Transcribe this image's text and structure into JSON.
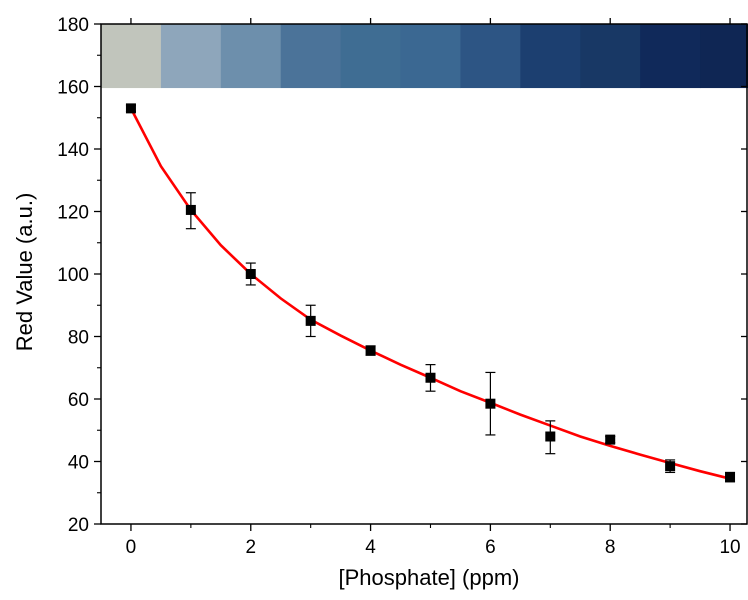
{
  "chart_data": {
    "type": "scatter",
    "xlabel": "[Phosphate] (ppm)",
    "ylabel": "Red Value (a.u.)",
    "xlim": [
      -0.5,
      10.3
    ],
    "ylim": [
      20,
      180
    ],
    "xticks": [
      0,
      2,
      4,
      6,
      8,
      10
    ],
    "yticks": [
      20,
      40,
      60,
      80,
      100,
      120,
      140,
      160,
      180
    ],
    "grid": false,
    "series": [
      {
        "kind": "points-with-error-bars",
        "color": "#000000",
        "marker": "square",
        "x": [
          0,
          1,
          2,
          3,
          4,
          5,
          6,
          7,
          8,
          9,
          10
        ],
        "y": [
          153,
          120.5,
          100,
          85,
          75.5,
          66.8,
          58.5,
          48,
          47,
          38.5,
          35
        ],
        "err_low": [
          152,
          114.5,
          96.5,
          80,
          74,
          62.5,
          48.5,
          42.5,
          46,
          36.5,
          33.5
        ],
        "err_high": [
          154,
          126,
          103.5,
          90,
          77,
          71,
          68.5,
          53,
          48,
          40.5,
          36.5
        ]
      },
      {
        "kind": "fit-curve",
        "color": "#ff0000",
        "x": [
          0,
          0.5,
          1,
          1.5,
          2,
          2.5,
          3,
          3.5,
          4,
          4.5,
          5,
          5.5,
          6,
          6.5,
          7,
          7.5,
          8,
          8.5,
          9,
          9.5,
          10
        ],
        "y": [
          153,
          134.5,
          120.5,
          109.2,
          100,
          92.2,
          85.4,
          80.3,
          75.5,
          71.0,
          66.8,
          62.5,
          58.8,
          55.0,
          51.5,
          48.0,
          45.0,
          42.2,
          39.5,
          36.9,
          34.5
        ]
      }
    ],
    "color_swatches": [
      "#c1c5bc",
      "#8ea6bb",
      "#6d8fac",
      "#4b7399",
      "#3f6d93",
      "#3b6892",
      "#2d5584",
      "#1c3f70",
      "#183865",
      "#10295a",
      "#0f2654"
    ]
  }
}
